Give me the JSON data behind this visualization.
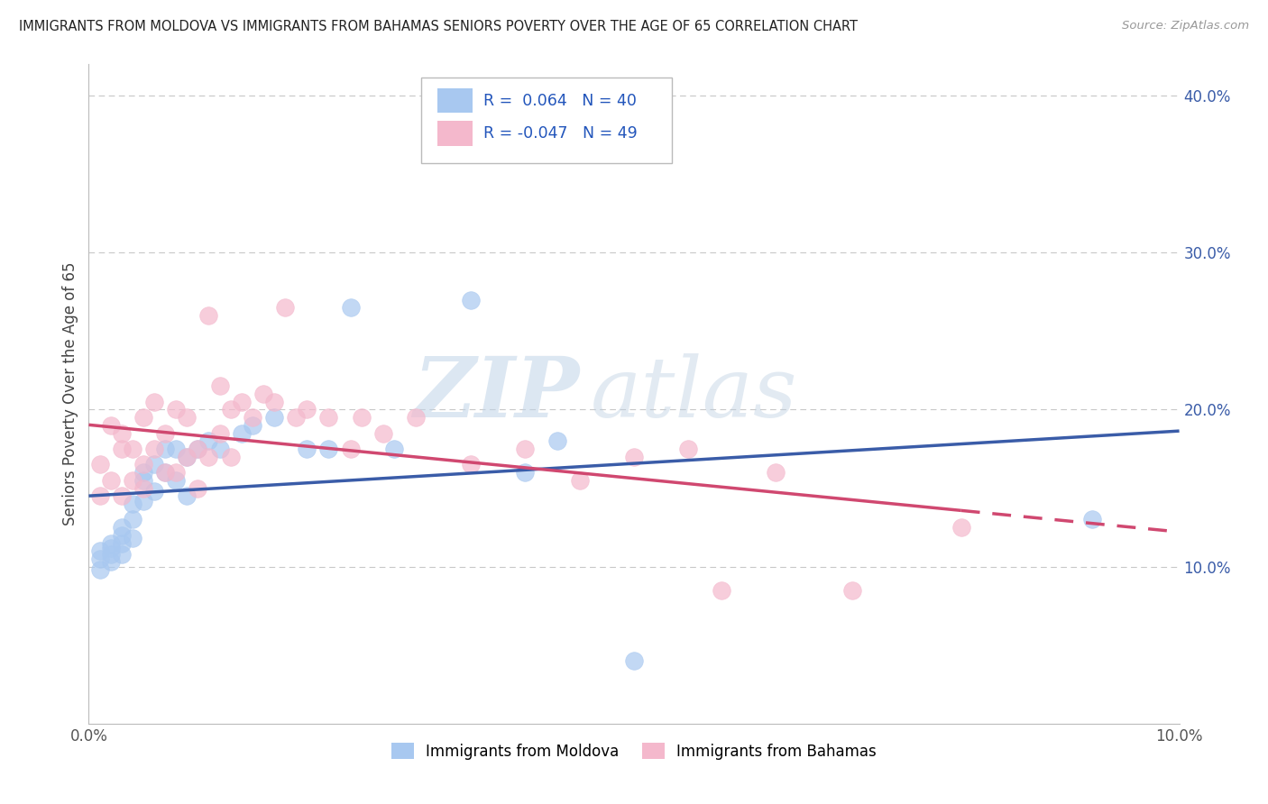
{
  "title": "IMMIGRANTS FROM MOLDOVA VS IMMIGRANTS FROM BAHAMAS SENIORS POVERTY OVER THE AGE OF 65 CORRELATION CHART",
  "source": "Source: ZipAtlas.com",
  "ylabel": "Seniors Poverty Over the Age of 65",
  "xlim": [
    0.0,
    0.1
  ],
  "ylim": [
    0.0,
    0.42
  ],
  "yticks": [
    0.1,
    0.2,
    0.3,
    0.4
  ],
  "ytick_labels": [
    "10.0%",
    "20.0%",
    "30.0%",
    "40.0%"
  ],
  "moldova_R": 0.064,
  "moldova_N": 40,
  "bahamas_R": -0.047,
  "bahamas_N": 49,
  "moldova_color": "#a8c8f0",
  "bahamas_color": "#f4b8cc",
  "moldova_line_color": "#3a5ca8",
  "bahamas_line_color": "#d04870",
  "watermark_zip": "ZIP",
  "watermark_atlas": "atlas",
  "background_color": "#ffffff",
  "grid_color": "#c8c8c8",
  "moldova_x": [
    0.001,
    0.001,
    0.001,
    0.002,
    0.002,
    0.002,
    0.002,
    0.003,
    0.003,
    0.003,
    0.003,
    0.004,
    0.004,
    0.004,
    0.005,
    0.005,
    0.005,
    0.006,
    0.006,
    0.007,
    0.007,
    0.008,
    0.008,
    0.009,
    0.009,
    0.01,
    0.011,
    0.012,
    0.014,
    0.015,
    0.017,
    0.02,
    0.022,
    0.024,
    0.028,
    0.035,
    0.04,
    0.043,
    0.05,
    0.092
  ],
  "moldova_y": [
    0.105,
    0.098,
    0.11,
    0.112,
    0.108,
    0.115,
    0.103,
    0.115,
    0.12,
    0.108,
    0.125,
    0.13,
    0.118,
    0.14,
    0.155,
    0.142,
    0.16,
    0.165,
    0.148,
    0.175,
    0.16,
    0.175,
    0.155,
    0.17,
    0.145,
    0.175,
    0.18,
    0.175,
    0.185,
    0.19,
    0.195,
    0.175,
    0.175,
    0.265,
    0.175,
    0.27,
    0.16,
    0.18,
    0.04,
    0.13
  ],
  "bahamas_x": [
    0.001,
    0.001,
    0.002,
    0.002,
    0.003,
    0.003,
    0.003,
    0.004,
    0.004,
    0.005,
    0.005,
    0.005,
    0.006,
    0.006,
    0.007,
    0.007,
    0.008,
    0.008,
    0.009,
    0.009,
    0.01,
    0.01,
    0.011,
    0.011,
    0.012,
    0.012,
    0.013,
    0.013,
    0.014,
    0.015,
    0.016,
    0.017,
    0.018,
    0.019,
    0.02,
    0.022,
    0.024,
    0.025,
    0.027,
    0.03,
    0.035,
    0.04,
    0.045,
    0.05,
    0.055,
    0.058,
    0.063,
    0.07,
    0.08
  ],
  "bahamas_y": [
    0.165,
    0.145,
    0.19,
    0.155,
    0.185,
    0.175,
    0.145,
    0.175,
    0.155,
    0.195,
    0.165,
    0.15,
    0.205,
    0.175,
    0.185,
    0.16,
    0.2,
    0.16,
    0.195,
    0.17,
    0.175,
    0.15,
    0.26,
    0.17,
    0.215,
    0.185,
    0.2,
    0.17,
    0.205,
    0.195,
    0.21,
    0.205,
    0.265,
    0.195,
    0.2,
    0.195,
    0.175,
    0.195,
    0.185,
    0.195,
    0.165,
    0.175,
    0.155,
    0.17,
    0.175,
    0.085,
    0.16,
    0.085,
    0.125
  ]
}
